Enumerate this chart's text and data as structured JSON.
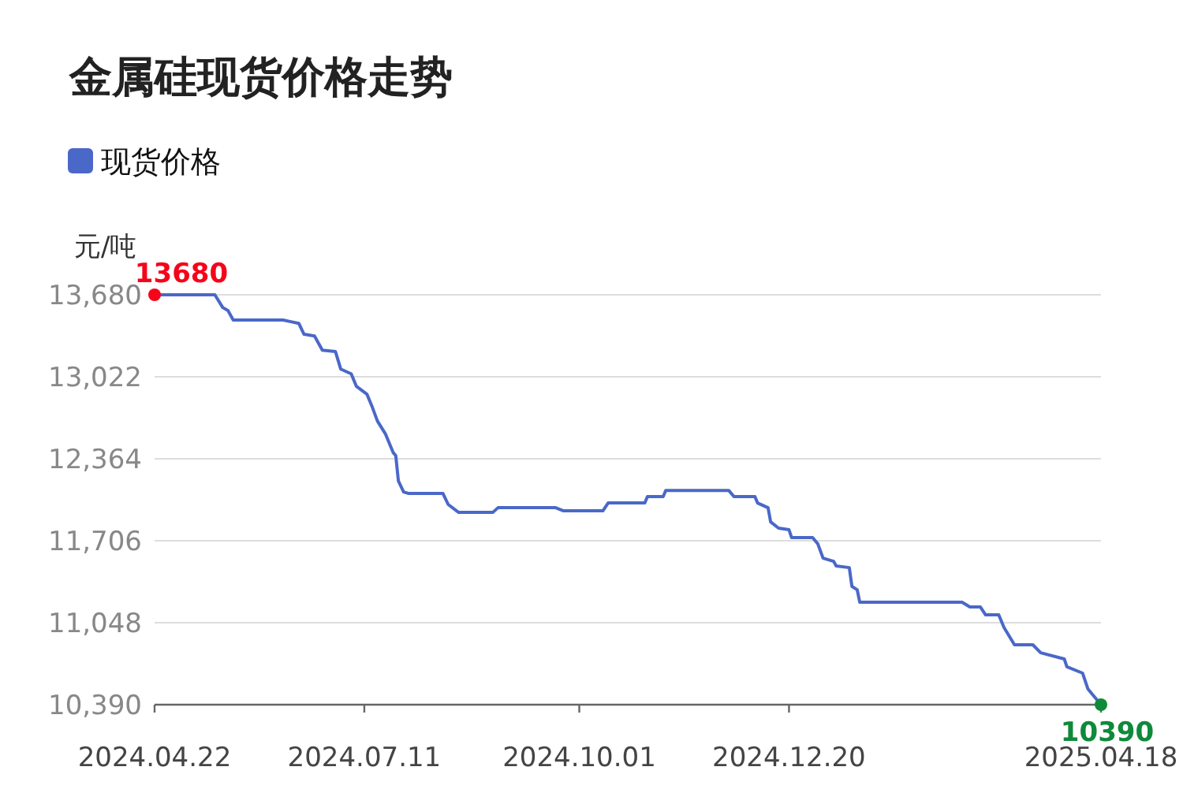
{
  "chart_data": {
    "type": "line",
    "title": "金属硅现货价格走势",
    "ylabel": "元/吨",
    "legend": "top left",
    "grid": "y",
    "line_style": "solid",
    "xlim": [
      "2024-04-22",
      "2025-04-18"
    ],
    "xticks": [
      {
        "value": "2024-04-22",
        "label": "2024.04.22"
      },
      {
        "value": "2024-07-11",
        "label": "2024.07.11"
      },
      {
        "value": "2024-10-01",
        "label": "2024.10.01"
      },
      {
        "value": "2024-12-20",
        "label": "2024.12.20"
      },
      {
        "value": "2025-04-18",
        "label": "2025.04.18"
      }
    ],
    "ylim": [
      10390,
      13680
    ],
    "yticks": [
      {
        "value": 10390,
        "label": "10,390"
      },
      {
        "value": 11048,
        "label": "11,048"
      },
      {
        "value": 11706,
        "label": "11,706"
      },
      {
        "value": 12364,
        "label": "12,364"
      },
      {
        "value": 13022,
        "label": "13,022"
      },
      {
        "value": 13680,
        "label": "13,680"
      }
    ],
    "series": [
      {
        "name": "现货价格",
        "color": "#4a68c8",
        "x": [
          "2024-04-22",
          "2024-05-15",
          "2024-05-18",
          "2024-05-20",
          "2024-05-22",
          "2024-06-10",
          "2024-06-13",
          "2024-06-16",
          "2024-06-18",
          "2024-06-22",
          "2024-06-25",
          "2024-06-30",
          "2024-07-02",
          "2024-07-06",
          "2024-07-08",
          "2024-07-12",
          "2024-07-14",
          "2024-07-16",
          "2024-07-19",
          "2024-07-21",
          "2024-07-22",
          "2024-07-23",
          "2024-07-24",
          "2024-07-26",
          "2024-07-28",
          "2024-08-10",
          "2024-08-12",
          "2024-08-16",
          "2024-08-29",
          "2024-08-31",
          "2024-09-22",
          "2024-09-25",
          "2024-10-10",
          "2024-10-12",
          "2024-10-26",
          "2024-10-27",
          "2024-11-02",
          "2024-11-03",
          "2024-11-27",
          "2024-11-29",
          "2024-12-07",
          "2024-12-08",
          "2024-12-12",
          "2024-12-13",
          "2024-12-16",
          "2024-12-20",
          "2024-12-21",
          "2024-12-29",
          "2024-12-31",
          "2025-01-02",
          "2025-01-06",
          "2025-01-07",
          "2025-01-12",
          "2025-01-13",
          "2025-01-15",
          "2025-01-16",
          "2025-02-24",
          "2025-02-27",
          "2025-03-03",
          "2025-03-05",
          "2025-03-10",
          "2025-03-12",
          "2025-03-16",
          "2025-03-23",
          "2025-03-26",
          "2025-04-04",
          "2025-04-05",
          "2025-04-11",
          "2025-04-13",
          "2025-04-18"
        ],
        "values": [
          13680,
          13680,
          13578,
          13553,
          13477,
          13477,
          13464,
          13451,
          13363,
          13350,
          13236,
          13224,
          13084,
          13046,
          12945,
          12882,
          12781,
          12667,
          12566,
          12465,
          12414,
          12389,
          12186,
          12098,
          12085,
          12085,
          11997,
          11933,
          11933,
          11971,
          11971,
          11946,
          11946,
          12009,
          12009,
          12060,
          12060,
          12110,
          12110,
          12060,
          12060,
          12009,
          11971,
          11857,
          11807,
          11794,
          11731,
          11731,
          11680,
          11566,
          11541,
          11503,
          11490,
          11339,
          11313,
          11212,
          11212,
          11174,
          11174,
          11111,
          11111,
          11010,
          10871,
          10871,
          10807,
          10757,
          10694,
          10643,
          10517,
          10390
        ],
        "colors": [
          "#f5051a",
          null,
          null,
          null,
          null,
          null,
          null,
          null,
          null,
          null,
          null,
          null,
          null,
          null,
          null,
          null,
          null,
          null,
          null,
          null,
          null,
          null,
          null,
          null,
          null,
          null,
          null,
          null,
          null,
          null,
          null,
          null,
          null,
          null,
          null,
          null,
          null,
          null,
          null,
          null,
          null,
          null,
          null,
          null,
          null,
          null,
          null,
          null,
          null,
          null,
          null,
          null,
          null,
          null,
          null,
          null,
          null,
          null,
          null,
          null,
          null,
          null,
          null,
          null,
          null,
          null,
          null,
          null,
          null,
          "#0e8a3a"
        ],
        "value_labels": [
          "13680",
          null,
          null,
          null,
          null,
          null,
          null,
          null,
          null,
          null,
          null,
          null,
          null,
          null,
          null,
          null,
          null,
          null,
          null,
          null,
          null,
          null,
          null,
          null,
          null,
          null,
          null,
          null,
          null,
          null,
          null,
          null,
          null,
          null,
          null,
          null,
          null,
          null,
          null,
          null,
          null,
          null,
          null,
          null,
          null,
          null,
          null,
          null,
          null,
          null,
          null,
          null,
          null,
          null,
          null,
          null,
          null,
          null,
          null,
          null,
          null,
          null,
          null,
          null,
          null,
          null,
          null,
          null,
          null,
          "10390"
        ]
      }
    ]
  }
}
